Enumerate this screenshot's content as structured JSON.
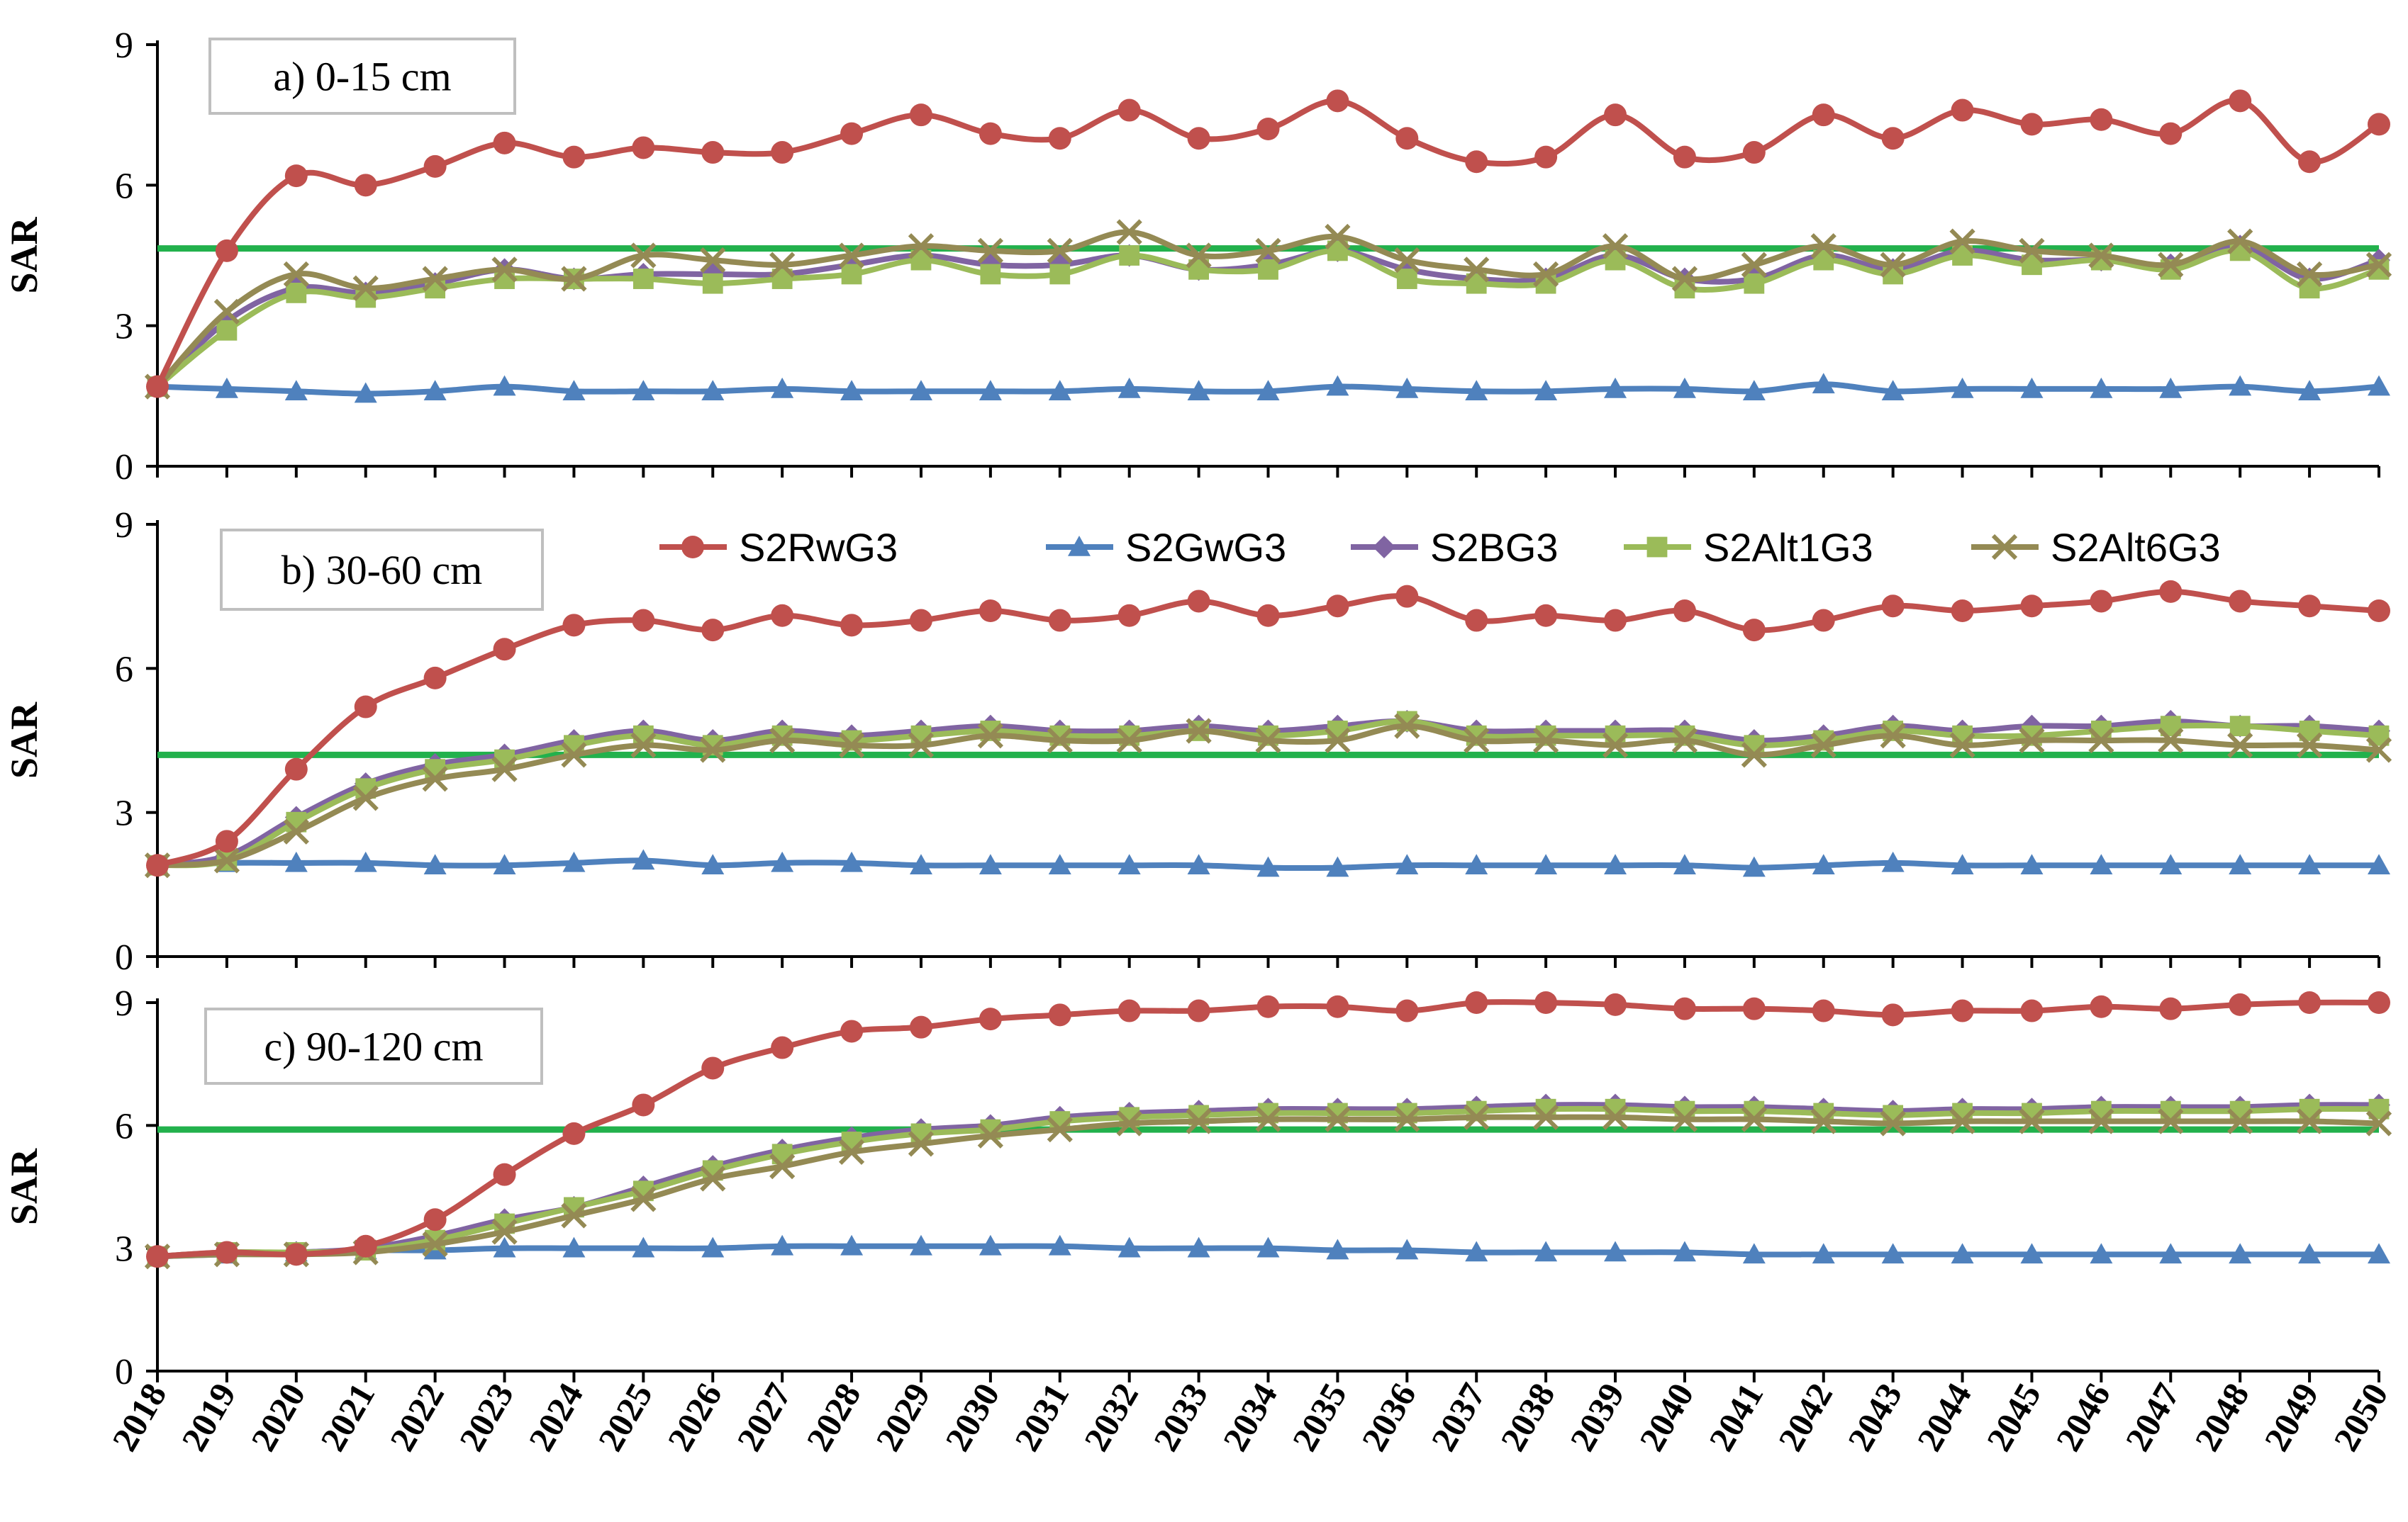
{
  "chart_data": {
    "type": "line",
    "x": [
      2018,
      2019,
      2020,
      2021,
      2022,
      2023,
      2024,
      2025,
      2026,
      2027,
      2028,
      2029,
      2030,
      2031,
      2032,
      2033,
      2034,
      2035,
      2036,
      2037,
      2038,
      2039,
      2040,
      2041,
      2042,
      2043,
      2044,
      2045,
      2046,
      2047,
      2048,
      2049,
      2050
    ],
    "x_tick_labels": [
      "2018",
      "2019",
      "2020",
      "2021",
      "2022",
      "2023",
      "2024",
      "2025",
      "2026",
      "2027",
      "2028",
      "2029",
      "2030",
      "2031",
      "2032",
      "2033",
      "2034",
      "2035",
      "2036",
      "2037",
      "2038",
      "2039",
      "2040",
      "2041",
      "2042",
      "2043",
      "2044",
      "2045",
      "2046",
      "2047",
      "2048",
      "2049",
      "2050"
    ],
    "ylim": [
      0,
      9
    ],
    "y_ticks": [
      "0",
      "3",
      "6",
      "9"
    ],
    "grid": false,
    "legend": {
      "placement": "top of panel b",
      "entries": [
        {
          "name": "S2RwG3",
          "color": "#C0504D",
          "marker": "circle"
        },
        {
          "name": "S2GwG3",
          "color": "#4F81BD",
          "marker": "triangle"
        },
        {
          "name": "S2BG3",
          "color": "#8064A2",
          "marker": "diamond"
        },
        {
          "name": "S2Alt1G3",
          "color": "#9BBB59",
          "marker": "square"
        },
        {
          "name": "S2Alt6G3",
          "color": "#948A54",
          "marker": "x"
        }
      ]
    },
    "threshold_color": "#22B14C",
    "panels": [
      {
        "label": "a) 0-15 cm",
        "ylabel": "SAR",
        "threshold": 4.65,
        "series": [
          {
            "name": "S2RwG3",
            "values": [
              1.7,
              4.6,
              6.2,
              6.0,
              6.4,
              6.9,
              6.6,
              6.8,
              6.7,
              6.7,
              7.1,
              7.5,
              7.1,
              7.0,
              7.6,
              7.0,
              7.2,
              7.8,
              7.0,
              6.5,
              6.6,
              7.5,
              6.6,
              6.7,
              7.5,
              7.0,
              7.6,
              7.3,
              7.4,
              7.1,
              7.8,
              6.5,
              7.3
            ]
          },
          {
            "name": "S2GwG3",
            "values": [
              1.7,
              1.65,
              1.6,
              1.55,
              1.6,
              1.7,
              1.6,
              1.6,
              1.6,
              1.65,
              1.6,
              1.6,
              1.6,
              1.6,
              1.65,
              1.6,
              1.6,
              1.7,
              1.65,
              1.6,
              1.6,
              1.65,
              1.65,
              1.6,
              1.75,
              1.6,
              1.65,
              1.65,
              1.65,
              1.65,
              1.7,
              1.6,
              1.7
            ]
          },
          {
            "name": "S2BG3",
            "values": [
              1.7,
              3.1,
              3.8,
              3.7,
              3.9,
              4.2,
              4.0,
              4.1,
              4.1,
              4.1,
              4.3,
              4.5,
              4.3,
              4.3,
              4.5,
              4.2,
              4.3,
              4.6,
              4.2,
              4.0,
              4.0,
              4.5,
              4.0,
              4.0,
              4.5,
              4.2,
              4.6,
              4.4,
              4.4,
              4.3,
              4.7,
              4.0,
              4.4
            ]
          },
          {
            "name": "S2Alt1G3",
            "values": [
              1.7,
              2.9,
              3.7,
              3.6,
              3.8,
              4.0,
              4.0,
              4.0,
              3.9,
              4.0,
              4.1,
              4.4,
              4.1,
              4.1,
              4.5,
              4.2,
              4.2,
              4.6,
              4.0,
              3.9,
              3.9,
              4.4,
              3.8,
              3.9,
              4.4,
              4.1,
              4.5,
              4.3,
              4.4,
              4.2,
              4.6,
              3.8,
              4.2
            ]
          },
          {
            "name": "S2Alt6G3",
            "values": [
              1.7,
              3.3,
              4.1,
              3.8,
              4.0,
              4.2,
              4.0,
              4.5,
              4.4,
              4.3,
              4.5,
              4.7,
              4.6,
              4.6,
              5.0,
              4.5,
              4.6,
              4.9,
              4.4,
              4.2,
              4.1,
              4.7,
              4.0,
              4.3,
              4.7,
              4.3,
              4.8,
              4.6,
              4.5,
              4.3,
              4.8,
              4.1,
              4.3
            ]
          }
        ]
      },
      {
        "label": "b) 30-60 cm",
        "ylabel": "SAR",
        "threshold": 4.2,
        "series": [
          {
            "name": "S2RwG3",
            "values": [
              1.9,
              2.4,
              3.9,
              5.2,
              5.8,
              6.4,
              6.9,
              7.0,
              6.8,
              7.1,
              6.9,
              7.0,
              7.2,
              7.0,
              7.1,
              7.4,
              7.1,
              7.3,
              7.5,
              7.0,
              7.1,
              7.0,
              7.2,
              6.8,
              7.0,
              7.3,
              7.2,
              7.3,
              7.4,
              7.6,
              7.4,
              7.3,
              7.2
            ]
          },
          {
            "name": "S2GwG3",
            "values": [
              1.9,
              1.95,
              1.95,
              1.95,
              1.9,
              1.9,
              1.95,
              2.0,
              1.9,
              1.95,
              1.95,
              1.9,
              1.9,
              1.9,
              1.9,
              1.9,
              1.85,
              1.85,
              1.9,
              1.9,
              1.9,
              1.9,
              1.9,
              1.85,
              1.9,
              1.95,
              1.9,
              1.9,
              1.9,
              1.9,
              1.9,
              1.9,
              1.9
            ]
          },
          {
            "name": "S2BG3",
            "values": [
              1.9,
              2.1,
              2.9,
              3.6,
              4.0,
              4.2,
              4.5,
              4.7,
              4.5,
              4.7,
              4.6,
              4.7,
              4.8,
              4.7,
              4.7,
              4.8,
              4.7,
              4.8,
              4.9,
              4.7,
              4.7,
              4.7,
              4.7,
              4.5,
              4.6,
              4.8,
              4.7,
              4.8,
              4.8,
              4.9,
              4.8,
              4.8,
              4.7
            ]
          },
          {
            "name": "S2Alt1G3",
            "values": [
              1.9,
              2.0,
              2.8,
              3.5,
              3.9,
              4.1,
              4.4,
              4.6,
              4.4,
              4.6,
              4.5,
              4.6,
              4.7,
              4.6,
              4.6,
              4.7,
              4.6,
              4.7,
              4.9,
              4.6,
              4.6,
              4.6,
              4.6,
              4.4,
              4.5,
              4.7,
              4.6,
              4.6,
              4.7,
              4.8,
              4.8,
              4.7,
              4.6
            ]
          },
          {
            "name": "S2Alt6G3",
            "values": [
              1.9,
              2.0,
              2.6,
              3.3,
              3.7,
              3.9,
              4.2,
              4.4,
              4.3,
              4.5,
              4.4,
              4.4,
              4.6,
              4.5,
              4.5,
              4.7,
              4.5,
              4.5,
              4.8,
              4.5,
              4.5,
              4.4,
              4.5,
              4.2,
              4.4,
              4.6,
              4.4,
              4.5,
              4.5,
              4.5,
              4.4,
              4.4,
              4.3
            ]
          }
        ]
      },
      {
        "label": "c) 90-120 cm",
        "ylabel": "SAR",
        "threshold": 5.9,
        "series": [
          {
            "name": "S2RwG3",
            "values": [
              2.8,
              2.9,
              2.85,
              3.05,
              3.7,
              4.8,
              5.8,
              6.5,
              7.4,
              7.9,
              8.3,
              8.4,
              8.6,
              8.7,
              8.8,
              8.8,
              8.9,
              8.9,
              8.8,
              9.0,
              9.0,
              8.95,
              8.85,
              8.85,
              8.8,
              8.7,
              8.8,
              8.8,
              8.9,
              8.85,
              8.95,
              9.0,
              9.0
            ]
          },
          {
            "name": "S2GwG3",
            "values": [
              2.8,
              2.85,
              2.9,
              2.95,
              2.95,
              3.0,
              3.0,
              3.0,
              3.0,
              3.05,
              3.05,
              3.05,
              3.05,
              3.05,
              3.0,
              3.0,
              3.0,
              2.95,
              2.95,
              2.9,
              2.9,
              2.9,
              2.9,
              2.85,
              2.85,
              2.85,
              2.85,
              2.85,
              2.85,
              2.85,
              2.85,
              2.85,
              2.85
            ]
          },
          {
            "name": "S2BG3",
            "values": [
              2.8,
              2.9,
              2.9,
              3.0,
              3.3,
              3.7,
              4.0,
              4.5,
              5.0,
              5.4,
              5.7,
              5.9,
              6.0,
              6.2,
              6.3,
              6.35,
              6.4,
              6.4,
              6.4,
              6.45,
              6.5,
              6.5,
              6.45,
              6.45,
              6.4,
              6.35,
              6.4,
              6.4,
              6.45,
              6.45,
              6.45,
              6.5,
              6.5
            ]
          },
          {
            "name": "S2Alt1G3",
            "values": [
              2.8,
              2.9,
              2.9,
              2.95,
              3.2,
              3.6,
              4.0,
              4.4,
              4.9,
              5.3,
              5.6,
              5.8,
              5.9,
              6.1,
              6.2,
              6.25,
              6.3,
              6.3,
              6.3,
              6.35,
              6.4,
              6.4,
              6.35,
              6.35,
              6.3,
              6.25,
              6.3,
              6.3,
              6.35,
              6.35,
              6.35,
              6.4,
              6.4
            ]
          },
          {
            "name": "S2Alt6G3",
            "values": [
              2.8,
              2.85,
              2.85,
              2.9,
              3.1,
              3.4,
              3.8,
              4.2,
              4.7,
              5.0,
              5.35,
              5.55,
              5.75,
              5.9,
              6.05,
              6.1,
              6.15,
              6.15,
              6.15,
              6.2,
              6.2,
              6.2,
              6.15,
              6.15,
              6.1,
              6.05,
              6.1,
              6.1,
              6.1,
              6.1,
              6.1,
              6.1,
              6.05
            ]
          }
        ]
      }
    ]
  }
}
